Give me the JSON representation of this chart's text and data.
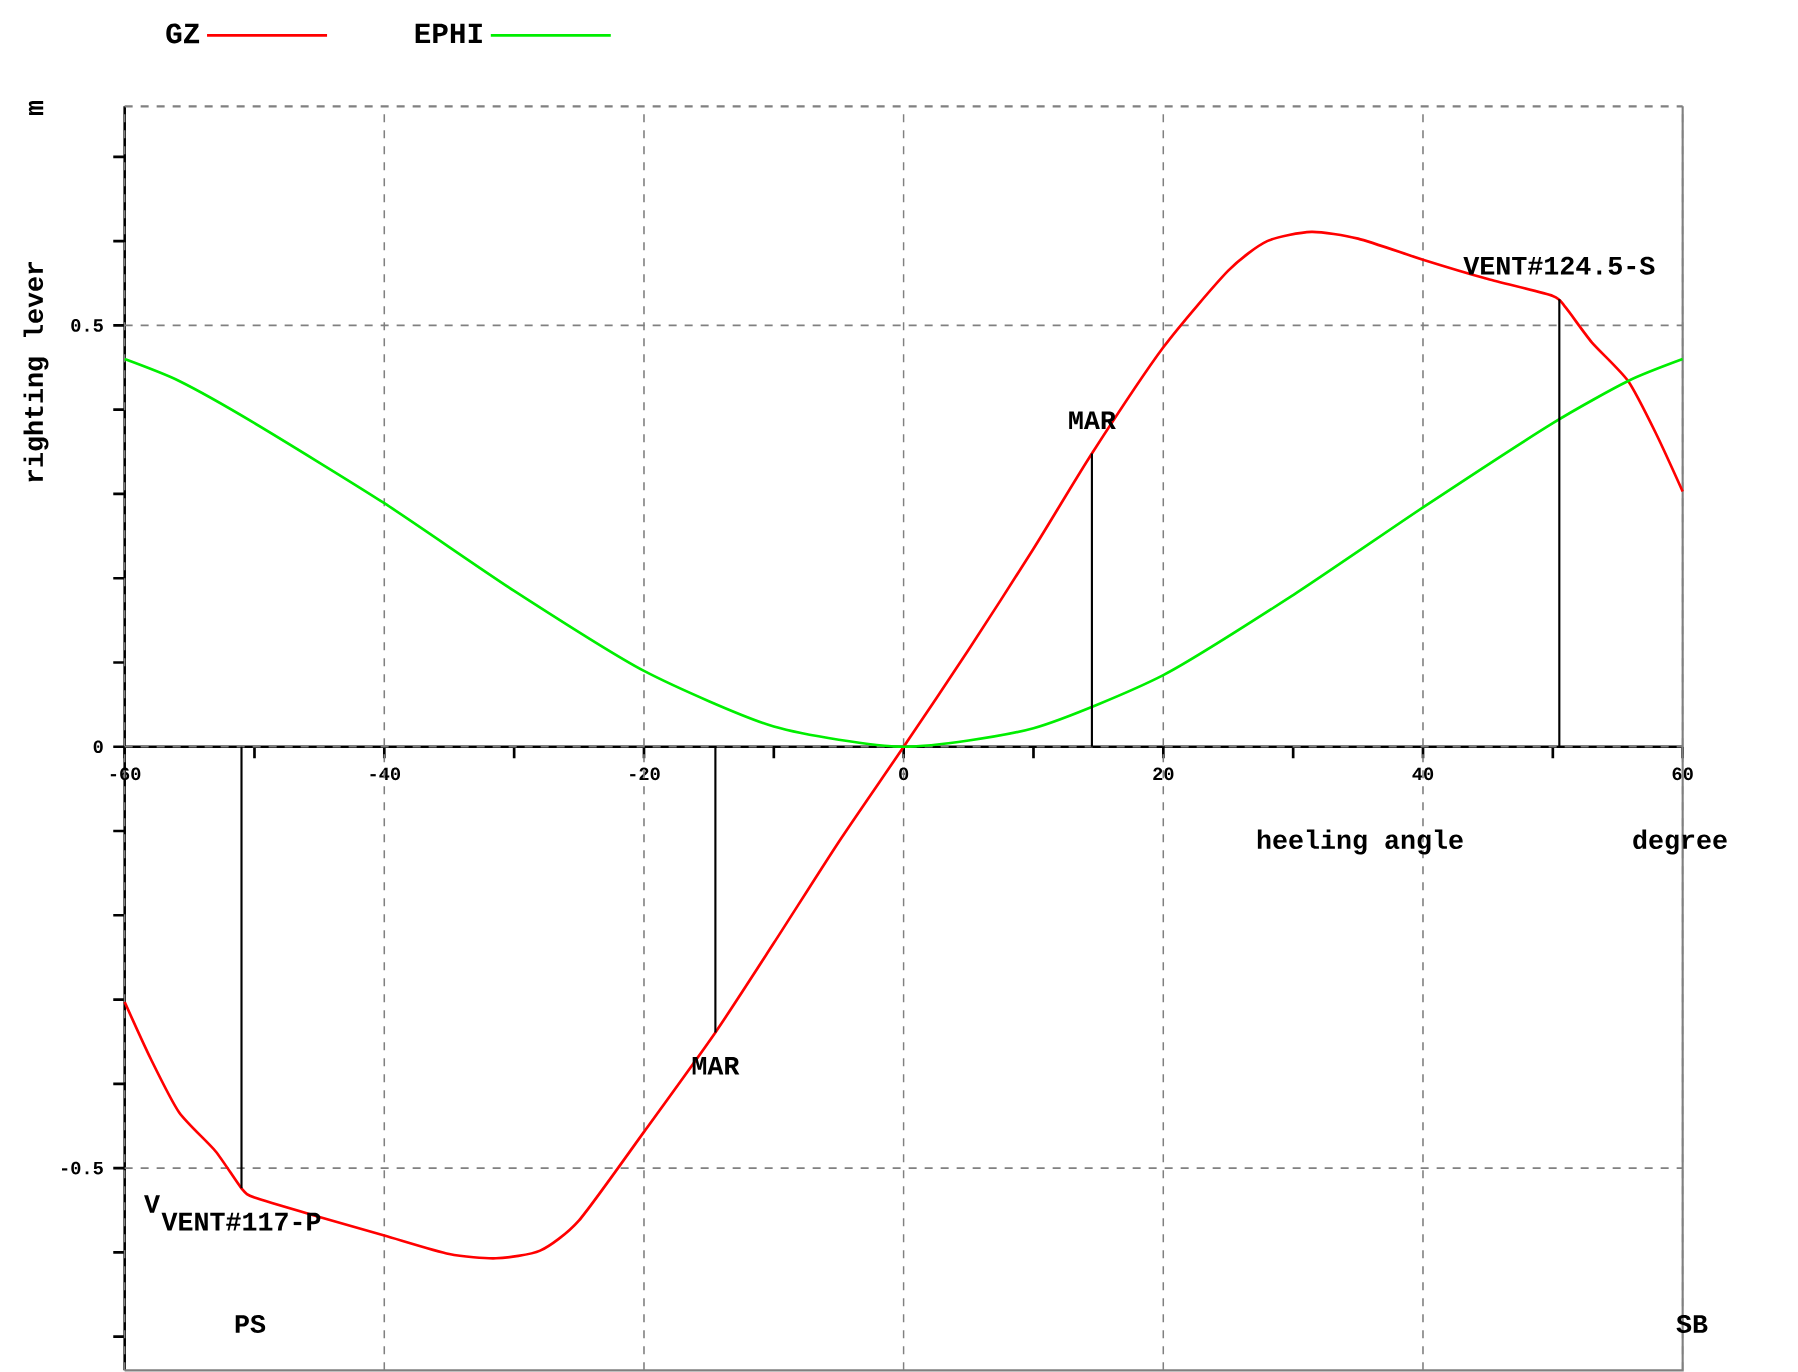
{
  "chart_data": {
    "type": "line",
    "xlabel": "heeling angle",
    "ylabel": "righting lever",
    "xlim": [
      -60,
      60
    ],
    "ylim": [
      -0.74,
      0.76
    ],
    "xticks": [
      -60,
      {
        "value": -50,
        "label": null
      },
      -40,
      {
        "value": -30,
        "label": null
      },
      -20,
      {
        "value": -10,
        "label": null
      },
      0,
      {
        "value": 10,
        "label": null
      },
      20,
      {
        "value": 30,
        "label": null
      },
      40,
      {
        "value": 50,
        "label": null
      },
      60
    ],
    "yticks": [
      {
        "value": -0.7,
        "label": null
      },
      {
        "value": -0.6,
        "label": null
      },
      -0.5,
      {
        "value": -0.4,
        "label": null
      },
      {
        "value": -0.3,
        "label": null
      },
      {
        "value": -0.2,
        "label": null
      },
      {
        "value": -0.1,
        "label": null
      },
      0,
      {
        "value": 0.1,
        "label": null
      },
      {
        "value": 0.2,
        "label": null
      },
      {
        "value": 0.3,
        "label": null
      },
      {
        "value": 0.4,
        "label": null
      },
      0.5,
      {
        "value": 0.6,
        "label": null
      },
      {
        "value": 0.7,
        "label": null
      }
    ],
    "grid": true,
    "legend": "top",
    "line_style": "solid",
    "marker": "none",
    "series": [
      {
        "name": "GZ",
        "color": "#ff0000",
        "x": [
          -60,
          -58,
          -55.8,
          -53,
          -51,
          -50,
          -45,
          -40,
          -35,
          -31.4,
          -28,
          -25,
          -20,
          -14.5,
          -10,
          -5,
          0,
          5,
          10,
          14.5,
          20,
          25,
          28,
          31.4,
          35,
          40,
          45,
          50,
          51,
          53,
          55.8,
          58,
          60
        ],
        "values": [
          -0.303,
          -0.37,
          -0.434,
          -0.48,
          -0.524,
          -0.535,
          -0.558,
          -0.58,
          -0.602,
          -0.607,
          -0.598,
          -0.562,
          -0.457,
          -0.339,
          -0.233,
          -0.113,
          0,
          0.115,
          0.235,
          0.348,
          0.474,
          0.565,
          0.6,
          0.611,
          0.603,
          0.578,
          0.555,
          0.535,
          0.521,
          0.48,
          0.434,
          0.37,
          0.303
        ]
      },
      {
        "name": "EPHI",
        "color": "#00ee00",
        "x": [
          -60,
          -55.8,
          -50,
          -40,
          -30,
          -20,
          -10,
          0,
          10,
          20,
          30,
          40,
          50,
          55.8,
          60
        ],
        "values": [
          0.46,
          0.434,
          0.384,
          0.289,
          0.185,
          0.09,
          0.024,
          0,
          0.022,
          0.085,
          0.18,
          0.284,
          0.384,
          0.434,
          0.46
        ]
      }
    ],
    "annotations": [
      {
        "text": "MAR",
        "x": 14.5,
        "y": 0.348
      },
      {
        "text": "MAR",
        "x": -14.5,
        "y": -0.339
      },
      {
        "text": "VENT#124.5-S",
        "x": 50.5,
        "y": 0.531
      },
      {
        "text": "VENT#117-P",
        "x": -51,
        "y": -0.524
      },
      "V",
      "m",
      "degree",
      "PS",
      "SB"
    ]
  }
}
